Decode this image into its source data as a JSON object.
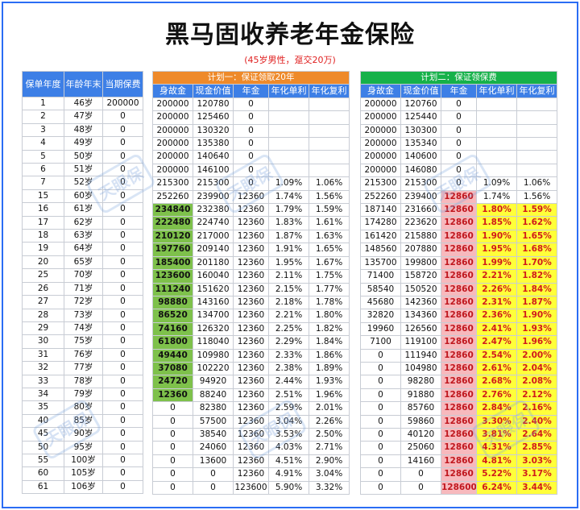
{
  "title": "黑马固收养老年金保险",
  "subtitle": "(45岁男性，趸交20万)",
  "watermark": "天眼保",
  "left_table": {
    "headers": [
      "保单年度",
      "年龄年末",
      "当期保费"
    ],
    "rows": [
      [
        "1",
        "46岁",
        "200000"
      ],
      [
        "2",
        "47岁",
        "0"
      ],
      [
        "3",
        "48岁",
        "0"
      ],
      [
        "4",
        "49岁",
        "0"
      ],
      [
        "5",
        "50岁",
        "0"
      ],
      [
        "6",
        "51岁",
        "0"
      ],
      [
        "7",
        "52岁",
        "0"
      ],
      [
        "15",
        "60岁",
        "0"
      ],
      [
        "16",
        "61岁",
        "0"
      ],
      [
        "17",
        "62岁",
        "0"
      ],
      [
        "18",
        "63岁",
        "0"
      ],
      [
        "19",
        "64岁",
        "0"
      ],
      [
        "20",
        "65岁",
        "0"
      ],
      [
        "25",
        "70岁",
        "0"
      ],
      [
        "26",
        "71岁",
        "0"
      ],
      [
        "27",
        "72岁",
        "0"
      ],
      [
        "28",
        "73岁",
        "0"
      ],
      [
        "29",
        "74岁",
        "0"
      ],
      [
        "30",
        "75岁",
        "0"
      ],
      [
        "31",
        "76岁",
        "0"
      ],
      [
        "32",
        "77岁",
        "0"
      ],
      [
        "33",
        "78岁",
        "0"
      ],
      [
        "34",
        "79岁",
        "0"
      ],
      [
        "35",
        "80岁",
        "0"
      ],
      [
        "40",
        "85岁",
        "0"
      ],
      [
        "45",
        "90岁",
        "0"
      ],
      [
        "50",
        "95岁",
        "0"
      ],
      [
        "55",
        "100岁",
        "0"
      ],
      [
        "60",
        "105岁",
        "0"
      ],
      [
        "61",
        "106岁",
        "0"
      ]
    ]
  },
  "plan1": {
    "title": "计划一：保证领取20年",
    "headers": [
      "身故金",
      "现金价值",
      "年金",
      "年化单利",
      "年化复利"
    ],
    "rows": [
      [
        "200000",
        "120780",
        "0",
        "",
        ""
      ],
      [
        "200000",
        "125460",
        "0",
        "",
        ""
      ],
      [
        "200000",
        "130320",
        "0",
        "",
        ""
      ],
      [
        "200000",
        "135380",
        "0",
        "",
        ""
      ],
      [
        "200000",
        "140640",
        "0",
        "",
        ""
      ],
      [
        "200000",
        "146100",
        "0",
        "",
        ""
      ],
      [
        "215300",
        "215300",
        "0",
        "1.09%",
        "1.06%"
      ],
      [
        "252260",
        "239900",
        "12360",
        "1.74%",
        "1.56%"
      ],
      [
        "234840",
        "232380",
        "12360",
        "1.79%",
        "1.59%"
      ],
      [
        "222480",
        "224740",
        "12360",
        "1.83%",
        "1.61%"
      ],
      [
        "210120",
        "217000",
        "12360",
        "1.87%",
        "1.63%"
      ],
      [
        "197760",
        "209140",
        "12360",
        "1.91%",
        "1.65%"
      ],
      [
        "185400",
        "201180",
        "12360",
        "1.95%",
        "1.67%"
      ],
      [
        "123600",
        "160040",
        "12360",
        "2.11%",
        "1.75%"
      ],
      [
        "111240",
        "151620",
        "12360",
        "2.15%",
        "1.77%"
      ],
      [
        "98880",
        "143160",
        "12360",
        "2.18%",
        "1.78%"
      ],
      [
        "86520",
        "134700",
        "12360",
        "2.21%",
        "1.80%"
      ],
      [
        "74160",
        "126320",
        "12360",
        "2.25%",
        "1.82%"
      ],
      [
        "61800",
        "118040",
        "12360",
        "2.29%",
        "1.84%"
      ],
      [
        "49440",
        "109980",
        "12360",
        "2.33%",
        "1.86%"
      ],
      [
        "37080",
        "102220",
        "12360",
        "2.38%",
        "1.89%"
      ],
      [
        "24720",
        "94920",
        "12360",
        "2.44%",
        "1.93%"
      ],
      [
        "12360",
        "88240",
        "12360",
        "2.51%",
        "1.96%"
      ],
      [
        "0",
        "82380",
        "12360",
        "2.59%",
        "2.01%"
      ],
      [
        "0",
        "57500",
        "12360",
        "3.04%",
        "2.26%"
      ],
      [
        "0",
        "38540",
        "12360",
        "3.53%",
        "2.50%"
      ],
      [
        "0",
        "24060",
        "12360",
        "4.03%",
        "2.71%"
      ],
      [
        "0",
        "13600",
        "12360",
        "4.51%",
        "2.90%"
      ],
      [
        "0",
        "0",
        "12360",
        "4.91%",
        "3.04%"
      ],
      [
        "0",
        "0",
        "123600",
        "5.90%",
        "3.32%"
      ]
    ]
  },
  "plan2": {
    "title": "计划二：保证领保费",
    "headers": [
      "身故金",
      "现金价值",
      "年金",
      "年化单利",
      "年化复利"
    ],
    "rows": [
      [
        "200000",
        "120760",
        "0",
        "",
        ""
      ],
      [
        "200000",
        "125440",
        "0",
        "",
        ""
      ],
      [
        "200000",
        "130300",
        "0",
        "",
        ""
      ],
      [
        "200000",
        "135340",
        "0",
        "",
        ""
      ],
      [
        "200000",
        "140600",
        "0",
        "",
        ""
      ],
      [
        "200000",
        "146080",
        "0",
        "",
        ""
      ],
      [
        "215300",
        "215300",
        "0",
        "1.09%",
        "1.06%"
      ],
      [
        "252260",
        "239400",
        "12860",
        "1.74%",
        "1.56%"
      ],
      [
        "187140",
        "231660",
        "12860",
        "1.80%",
        "1.59%"
      ],
      [
        "174280",
        "223620",
        "12860",
        "1.85%",
        "1.62%"
      ],
      [
        "161420",
        "215880",
        "12860",
        "1.90%",
        "1.65%"
      ],
      [
        "148560",
        "207880",
        "12860",
        "1.95%",
        "1.68%"
      ],
      [
        "135700",
        "199800",
        "12860",
        "1.99%",
        "1.70%"
      ],
      [
        "71400",
        "158720",
        "12860",
        "2.21%",
        "1.82%"
      ],
      [
        "58540",
        "150520",
        "12860",
        "2.26%",
        "1.84%"
      ],
      [
        "45680",
        "142360",
        "12860",
        "2.31%",
        "1.87%"
      ],
      [
        "32820",
        "134360",
        "12860",
        "2.36%",
        "1.90%"
      ],
      [
        "19960",
        "126560",
        "12860",
        "2.41%",
        "1.93%"
      ],
      [
        "7100",
        "119100",
        "12860",
        "2.47%",
        "1.96%"
      ],
      [
        "0",
        "111940",
        "12860",
        "2.54%",
        "2.00%"
      ],
      [
        "0",
        "104980",
        "12860",
        "2.61%",
        "2.04%"
      ],
      [
        "0",
        "98280",
        "12860",
        "2.68%",
        "2.08%"
      ],
      [
        "0",
        "91880",
        "12860",
        "2.76%",
        "2.12%"
      ],
      [
        "0",
        "85760",
        "12860",
        "2.84%",
        "2.16%"
      ],
      [
        "0",
        "59860",
        "12860",
        "3.30%",
        "2.40%"
      ],
      [
        "0",
        "40120",
        "12860",
        "3.81%",
        "2.64%"
      ],
      [
        "0",
        "25060",
        "12860",
        "4.31%",
        "2.85%"
      ],
      [
        "0",
        "14160",
        "12860",
        "4.81%",
        "3.03%"
      ],
      [
        "0",
        "0",
        "12860",
        "5.22%",
        "3.17%"
      ],
      [
        "0",
        "0",
        "128600",
        "6.24%",
        "3.44%"
      ]
    ]
  },
  "colors": {
    "frame": "#2a6df4",
    "header_blue": "#3d7fe6",
    "plan1_orange": "#ee8a2a",
    "plan2_green": "#16b14a",
    "highlight_green": "#7ec14b",
    "highlight_pink": "#f7b9bd",
    "highlight_yellow": "#ffff3a",
    "highlight_text_red": "#d11a1a"
  }
}
